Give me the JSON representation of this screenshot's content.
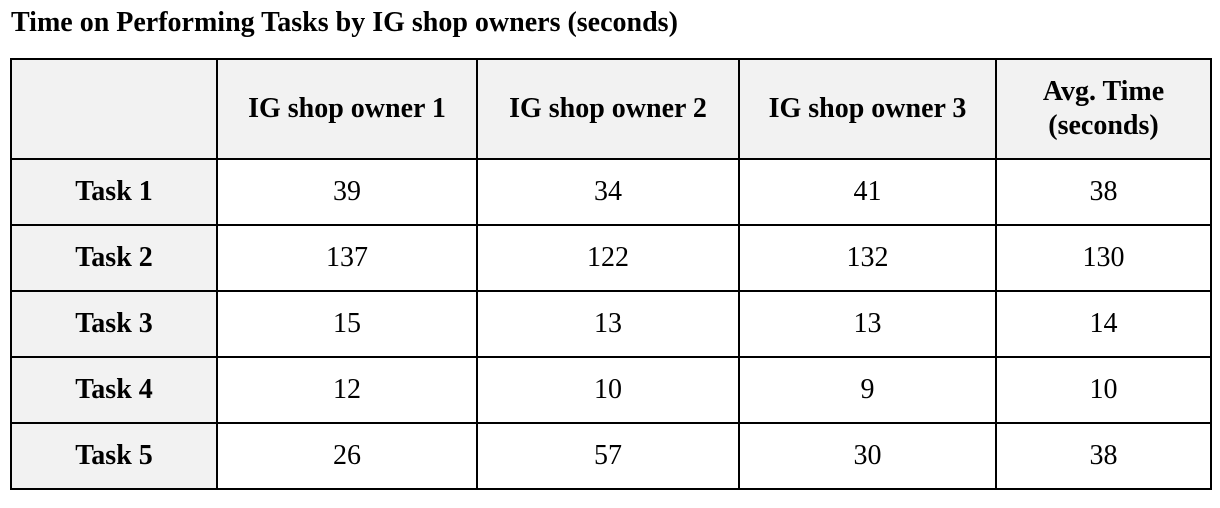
{
  "chart_data": {
    "type": "table",
    "title": "Time on Performing Tasks by IG shop owners (seconds)",
    "corner": "",
    "columns": [
      "IG shop owner 1",
      "IG shop owner 2",
      "IG shop owner 3",
      "Avg. Time (seconds)"
    ],
    "avg_header_lines": [
      "Avg. Time",
      "(seconds)"
    ],
    "rows": [
      {
        "label": "Task 1",
        "values": [
          "39",
          "34",
          "41",
          "38"
        ]
      },
      {
        "label": "Task 2",
        "values": [
          "137",
          "122",
          "132",
          "130"
        ]
      },
      {
        "label": "Task 3",
        "values": [
          "15",
          "13",
          "13",
          "14"
        ]
      },
      {
        "label": "Task 4",
        "values": [
          "12",
          "10",
          "9",
          "10"
        ]
      },
      {
        "label": "Task 5",
        "values": [
          "26",
          "57",
          "30",
          "38"
        ]
      }
    ]
  }
}
